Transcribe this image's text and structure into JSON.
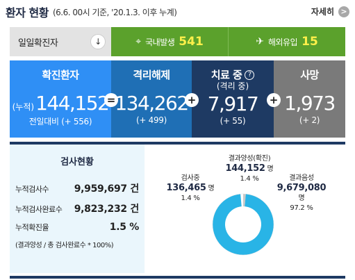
{
  "header": {
    "title": "환자 현황",
    "subtitle": "(6.6. 00시 기준, '20.1.3. 이후 누계)",
    "more_label": "자세히",
    "more_icon": ">"
  },
  "daily": {
    "label": "일일확진자",
    "arrow": "↓",
    "domestic": {
      "label": "국내발생",
      "value": "541",
      "icon": "⌖"
    },
    "overseas": {
      "label": "해외유입",
      "value": "15",
      "icon": "✈"
    },
    "value_color": "#fff04a"
  },
  "stats": {
    "confirmed": {
      "title": "확진환자",
      "prefix": "(누적)",
      "value": "144,152",
      "delta": "전일대비 (+ 556)",
      "color": "#2f8ff5"
    },
    "released": {
      "title": "격리해제",
      "value": "134,262",
      "delta": "(+ 499)",
      "color": "#1f6fb5"
    },
    "treating": {
      "title": "치료 중",
      "help": "?",
      "subtitle": "(격리 중)",
      "value": "7,917",
      "delta": "(+ 55)",
      "color": "#1e3a63"
    },
    "deaths": {
      "title": "사망",
      "value": "1,973",
      "delta": "(+ 2)",
      "color": "#7a7a7a"
    },
    "ops": [
      "=",
      "+",
      "+"
    ]
  },
  "test": {
    "heading": "검사현황",
    "rows": [
      {
        "label": "누적검사수",
        "value": "9,959,697 건"
      },
      {
        "label": "누적검사완료수",
        "value": "9,823,232 건"
      },
      {
        "label": "누적확진율",
        "value": "1.5 %"
      }
    ],
    "note": "(결과양성 / 총 검사완료수 * 100%)"
  },
  "pie": {
    "positive": {
      "label": "결과양성(확진)",
      "value": "144,152",
      "unit": "명",
      "pct": "1.4 %",
      "fraction": 0.014,
      "color": "#ffffff"
    },
    "testing": {
      "label": "검사중",
      "value": "136,465",
      "unit": "명",
      "pct": "1.4 %",
      "fraction": 0.014,
      "color": "#c9c9c9"
    },
    "negative": {
      "label": "결과음성",
      "value": "9,679,080",
      "unit": "명",
      "pct": "97.2 %",
      "fraction": 0.972,
      "color": "#29b4e6"
    }
  }
}
